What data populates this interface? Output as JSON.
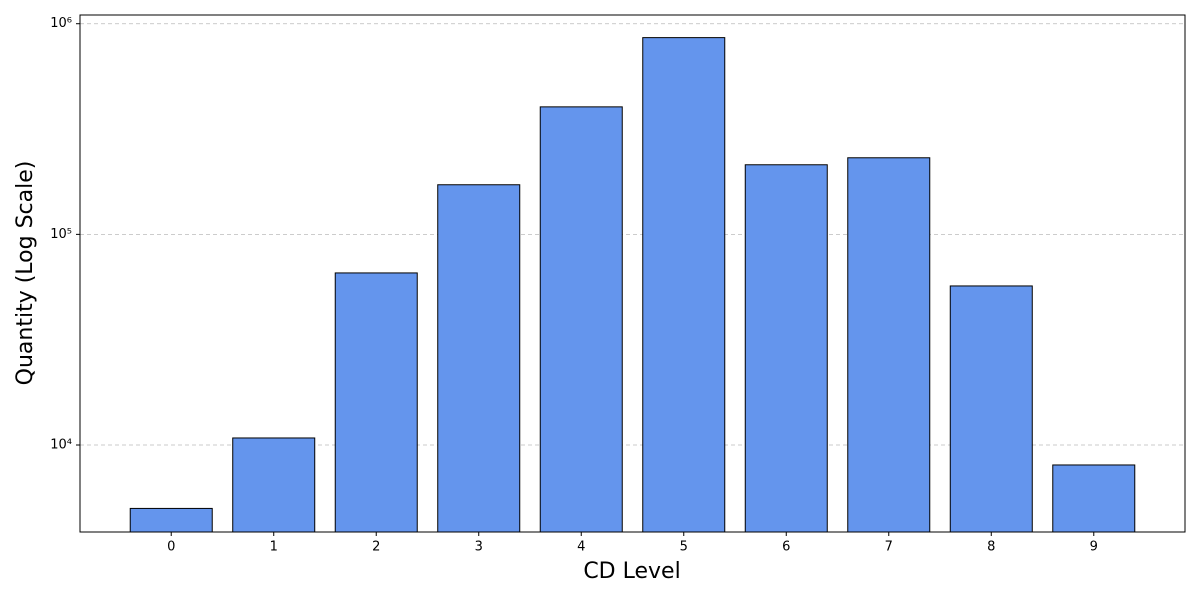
{
  "chart_data": {
    "type": "bar",
    "xlabel": "CD Level",
    "ylabel": "Quantity (Log Scale)",
    "categories": [
      "0",
      "1",
      "2",
      "3",
      "4",
      "5",
      "6",
      "7",
      "8",
      "9"
    ],
    "values": [
      5000,
      10800,
      65600,
      172000,
      403000,
      859000,
      214000,
      231000,
      56900,
      8040
    ],
    "color": "#6495ed",
    "edgecolor": "#000000",
    "log_scale": true,
    "ylim": [
      3864,
      1100000
    ],
    "yticks": [
      {
        "value": 10000,
        "label": "10⁴"
      },
      {
        "value": 100000,
        "label": "10⁵"
      },
      {
        "value": 1000000,
        "label": "10⁶"
      }
    ],
    "grid": true
  }
}
